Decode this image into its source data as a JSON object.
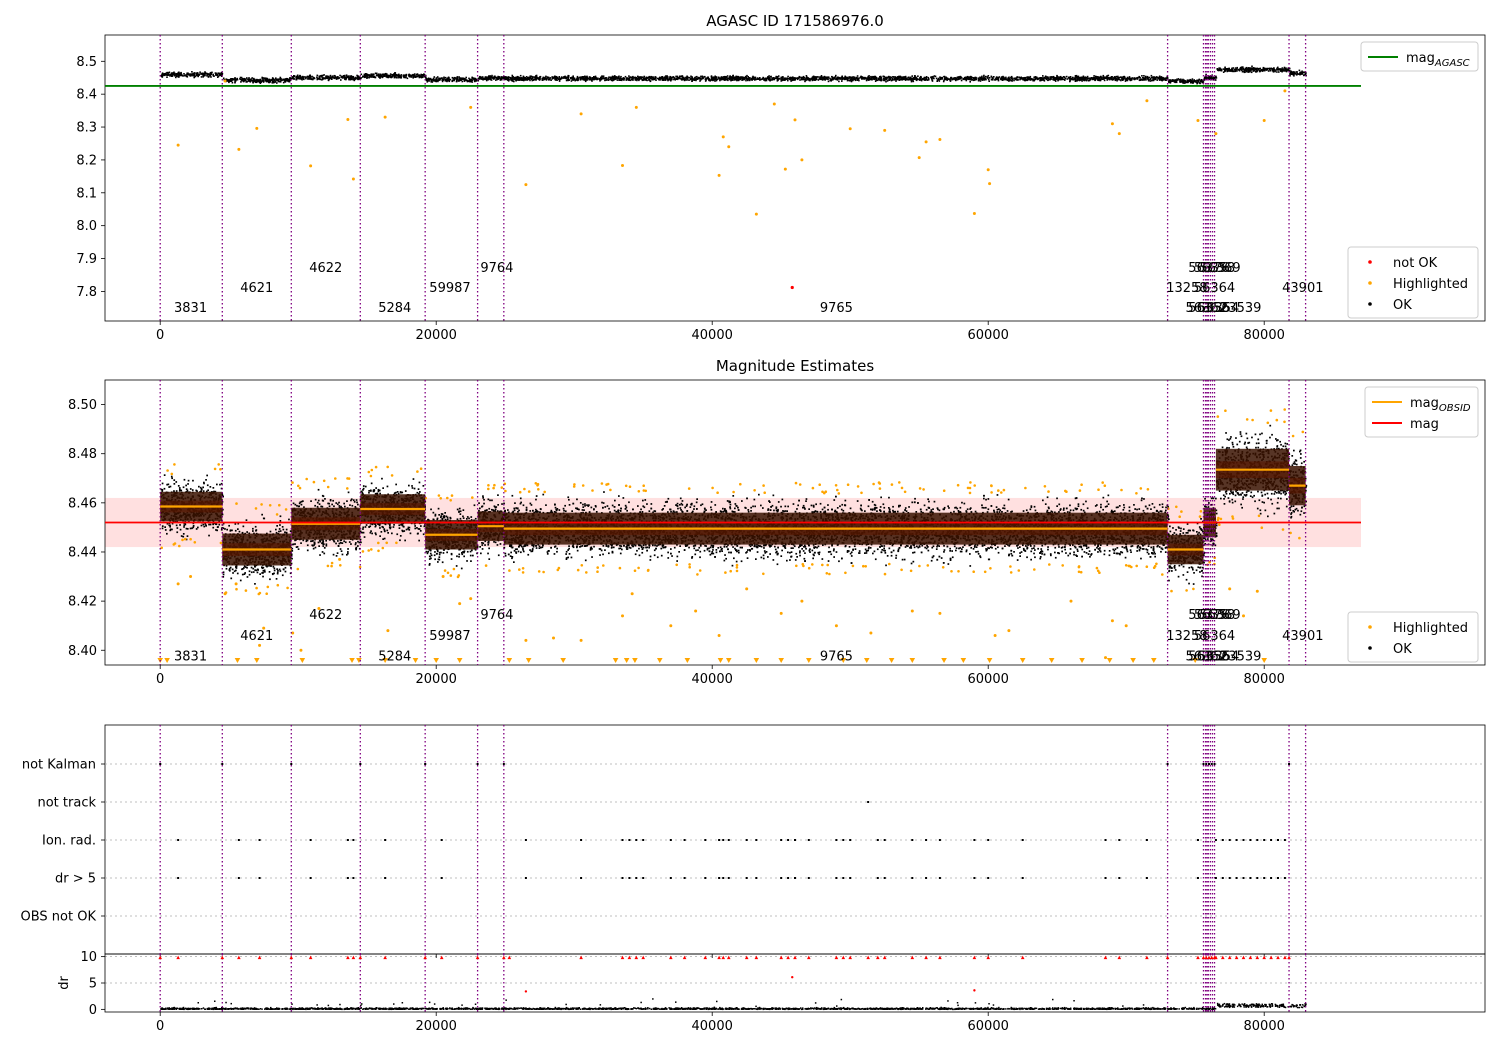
{
  "chart_data": [
    {
      "type": "scatter",
      "title": "AGASC ID 171586976.0",
      "xlim": [
        -4000,
        96000
      ],
      "ylim": [
        7.71,
        8.58
      ],
      "x_ticks": [
        0,
        20000,
        40000,
        60000,
        80000
      ],
      "x_tick_labels": [
        "0",
        "20000",
        "40000",
        "60000",
        "80000"
      ],
      "y_ticks": [
        7.8,
        7.9,
        8.0,
        8.1,
        8.2,
        8.3,
        8.4,
        8.5
      ],
      "y_tick_labels": [
        "7.8",
        "7.9",
        "8.0",
        "8.1",
        "8.2",
        "8.3",
        "8.4",
        "8.5"
      ],
      "mag_agasc": 8.425,
      "legend_upper": {
        "placement": "top-right",
        "entries": [
          {
            "label": "mag",
            "sub": "AGASC",
            "color": "#008000",
            "kind": "line"
          }
        ]
      },
      "legend_lower": {
        "placement": "bottom-right",
        "entries": [
          {
            "label": "not OK",
            "color": "#ff0000",
            "kind": "dot"
          },
          {
            "label": "Highlighted",
            "color": "#ffa500",
            "kind": "dot"
          },
          {
            "label": "OK",
            "color": "#000000",
            "kind": "dot"
          }
        ]
      },
      "not_ok_points": [
        {
          "x": 45800,
          "y": 7.812
        }
      ],
      "highlighted_points": [
        [
          1300,
          8.245
        ],
        [
          4700,
          8.44
        ],
        [
          5700,
          8.232
        ],
        [
          7000,
          8.296
        ],
        [
          10900,
          8.182
        ],
        [
          13600,
          8.323
        ],
        [
          14000,
          8.142
        ],
        [
          16300,
          8.33
        ],
        [
          22500,
          8.36
        ],
        [
          26500,
          8.125
        ],
        [
          30500,
          8.34
        ],
        [
          33500,
          8.183
        ],
        [
          34500,
          8.36
        ],
        [
          40500,
          8.153
        ],
        [
          40800,
          8.27
        ],
        [
          41200,
          8.24
        ],
        [
          43200,
          8.035
        ],
        [
          44500,
          8.37
        ],
        [
          45300,
          8.172
        ],
        [
          46000,
          8.322
        ],
        [
          46500,
          8.2
        ],
        [
          50000,
          8.295
        ],
        [
          52500,
          8.29
        ],
        [
          55000,
          8.207
        ],
        [
          55500,
          8.255
        ],
        [
          56500,
          8.262
        ],
        [
          59000,
          8.037
        ],
        [
          60000,
          8.17
        ],
        [
          60100,
          8.128
        ],
        [
          69000,
          8.31
        ],
        [
          69500,
          8.28
        ],
        [
          71500,
          8.38
        ],
        [
          75200,
          8.32
        ],
        [
          76500,
          8.28
        ],
        [
          80000,
          8.32
        ],
        [
          81500,
          8.41
        ]
      ],
      "obsids": [
        {
          "label": "3831",
          "x": 0,
          "label_x": 1000,
          "y": 7.751
        },
        {
          "label": "4621",
          "x": 4500,
          "label_x": 5800,
          "y": 7.812
        },
        {
          "label": "4622",
          "x": 9500,
          "label_x": 10800,
          "y": 7.872
        },
        {
          "label": "5284",
          "x": 14500,
          "label_x": 15800,
          "y": 7.751
        },
        {
          "label": "59987",
          "x": 19200,
          "label_x": 19500,
          "y": 7.812
        },
        {
          "label": "9764",
          "x": 23000,
          "label_x": 23200,
          "y": 7.872
        },
        {
          "label": "9765",
          "x": 24900,
          "label_x": 47800,
          "y": 7.751
        },
        {
          "label": "13258",
          "x": 73000,
          "label_x": 72900,
          "y": 7.812
        },
        {
          "label": "56376",
          "x": 75600,
          "label_x": 74500,
          "y": 7.872
        },
        {
          "label": "56356",
          "x": 75750,
          "label_x": 74500,
          "y": 7.751
        },
        {
          "label": "56358",
          "x": 75850,
          "label_x": 74900,
          "y": 7.872
        },
        {
          "label": "56369",
          "x": 75950,
          "label_x": 75300,
          "y": 7.872
        },
        {
          "label": "56364",
          "x": 76100,
          "label_x": 74900,
          "y": 7.812
        },
        {
          "label": "56362",
          "x": 76250,
          "label_x": 74300,
          "y": 7.751
        },
        {
          "label": "56354",
          "x": 76400,
          "label_x": 75200,
          "y": 7.751
        },
        {
          "label": "23539",
          "x": 81800,
          "label_x": 76800,
          "y": 7.751
        },
        {
          "label": "43901",
          "x": 83000,
          "label_x": 81300,
          "y": 7.812
        }
      ],
      "segments": [
        {
          "x0": 0,
          "x1": 4500,
          "mag": 8.462
        },
        {
          "x0": 4500,
          "x1": 9500,
          "mag": 8.445
        },
        {
          "x0": 9500,
          "x1": 14500,
          "mag": 8.452
        },
        {
          "x0": 14500,
          "x1": 19200,
          "mag": 8.458
        },
        {
          "x0": 19200,
          "x1": 23000,
          "mag": 8.447
        },
        {
          "x0": 23000,
          "x1": 24900,
          "mag": 8.451
        },
        {
          "x0": 24900,
          "x1": 73000,
          "mag": 8.45
        },
        {
          "x0": 73000,
          "x1": 75600,
          "mag": 8.442
        },
        {
          "x0": 75600,
          "x1": 76500,
          "mag": 8.452
        },
        {
          "x0": 76500,
          "x1": 81800,
          "mag": 8.477
        },
        {
          "x0": 81800,
          "x1": 83000,
          "mag": 8.466
        }
      ]
    },
    {
      "type": "scatter",
      "title": "Magnitude Estimates",
      "xlim": [
        -4000,
        96000
      ],
      "ylim": [
        8.394,
        8.51
      ],
      "x_ticks": [
        0,
        20000,
        40000,
        60000,
        80000
      ],
      "x_tick_labels": [
        "0",
        "20000",
        "40000",
        "60000",
        "80000"
      ],
      "y_ticks": [
        8.4,
        8.42,
        8.44,
        8.46,
        8.48,
        8.5
      ],
      "y_tick_labels": [
        "8.40",
        "8.42",
        "8.44",
        "8.46",
        "8.48",
        "8.50"
      ],
      "mag": 8.452,
      "mag_band": [
        8.442,
        8.462
      ],
      "legend_upper": {
        "placement": "top-right",
        "entries": [
          {
            "label": "mag",
            "sub": "OBSID",
            "color": "#ffa500",
            "kind": "line"
          },
          {
            "label": "mag",
            "color": "#ff0000",
            "kind": "line"
          }
        ]
      },
      "legend_lower": {
        "placement": "bottom-right",
        "entries": [
          {
            "label": "Highlighted",
            "color": "#ffa500",
            "kind": "dot"
          },
          {
            "label": "OK",
            "color": "#000000",
            "kind": "dot"
          }
        ]
      },
      "segments": [
        {
          "x0": 0,
          "x1": 4500,
          "mag": 8.4585,
          "std": 0.006
        },
        {
          "x0": 4500,
          "x1": 9500,
          "mag": 8.441,
          "std": 0.0065
        },
        {
          "x0": 9500,
          "x1": 14500,
          "mag": 8.4515,
          "std": 0.0065
        },
        {
          "x0": 14500,
          "x1": 19200,
          "mag": 8.4575,
          "std": 0.006
        },
        {
          "x0": 19200,
          "x1": 23000,
          "mag": 8.447,
          "std": 0.006
        },
        {
          "x0": 23000,
          "x1": 24900,
          "mag": 8.4505,
          "std": 0.006
        },
        {
          "x0": 24900,
          "x1": 73000,
          "mag": 8.4495,
          "std": 0.0065
        },
        {
          "x0": 73000,
          "x1": 75600,
          "mag": 8.441,
          "std": 0.006
        },
        {
          "x0": 75600,
          "x1": 76500,
          "mag": 8.452,
          "std": 0.006
        },
        {
          "x0": 76500,
          "x1": 81800,
          "mag": 8.4735,
          "std": 0.0085
        },
        {
          "x0": 81800,
          "x1": 83000,
          "mag": 8.467,
          "std": 0.008
        }
      ],
      "highlighted_points": [
        [
          1300,
          8.427
        ],
        [
          2200,
          8.43
        ],
        [
          4700,
          8.423
        ],
        [
          5500,
          8.427
        ],
        [
          7200,
          8.402
        ],
        [
          7500,
          8.409
        ],
        [
          9600,
          8.407
        ],
        [
          10200,
          8.4
        ],
        [
          11500,
          8.417
        ],
        [
          13000,
          8.437
        ],
        [
          16500,
          8.408
        ],
        [
          20500,
          8.43
        ],
        [
          21700,
          8.419
        ],
        [
          22500,
          8.421
        ],
        [
          26500,
          8.404
        ],
        [
          28500,
          8.405
        ],
        [
          30500,
          8.404
        ],
        [
          33500,
          8.414
        ],
        [
          34200,
          8.423
        ],
        [
          37000,
          8.41
        ],
        [
          38800,
          8.416
        ],
        [
          40500,
          8.406
        ],
        [
          42500,
          8.425
        ],
        [
          45000,
          8.415
        ],
        [
          46500,
          8.42
        ],
        [
          49000,
          8.41
        ],
        [
          51500,
          8.407
        ],
        [
          54500,
          8.416
        ],
        [
          56500,
          8.415
        ],
        [
          60500,
          8.406
        ],
        [
          61500,
          8.408
        ],
        [
          66000,
          8.42
        ],
        [
          68500,
          8.397
        ],
        [
          69000,
          8.412
        ],
        [
          70000,
          8.41
        ],
        [
          77500,
          8.425
        ],
        [
          78500,
          8.414
        ],
        [
          79500,
          8.424
        ]
      ],
      "below_axis_points": [
        0,
        500,
        5600,
        7000,
        10300,
        13900,
        14400,
        16300,
        18500,
        20000,
        21700,
        25300,
        26700,
        29200,
        33000,
        33800,
        34400,
        36200,
        38200,
        40600,
        41200,
        43200,
        45000,
        47000,
        49500,
        51200,
        53000,
        54500,
        56800,
        58200,
        60100,
        62500,
        64600,
        66800,
        68800,
        70500,
        72000,
        75000,
        80000
      ],
      "obsids": [
        {
          "label": "3831",
          "x": 0,
          "label_x": 1000,
          "y": 8.3977
        },
        {
          "label": "4621",
          "x": 4500,
          "label_x": 5800,
          "y": 8.4061
        },
        {
          "label": "4622",
          "x": 9500,
          "label_x": 10800,
          "y": 8.4145
        },
        {
          "label": "5284",
          "x": 14500,
          "label_x": 15800,
          "y": 8.3977
        },
        {
          "label": "59987",
          "x": 19200,
          "label_x": 19500,
          "y": 8.4061
        },
        {
          "label": "9764",
          "x": 23000,
          "label_x": 23200,
          "y": 8.4145
        },
        {
          "label": "9765",
          "x": 24900,
          "label_x": 47800,
          "y": 8.3977
        },
        {
          "label": "13258",
          "x": 73000,
          "label_x": 72900,
          "y": 8.4061
        },
        {
          "label": "56376",
          "x": 75600,
          "label_x": 74500,
          "y": 8.4145
        },
        {
          "label": "56356",
          "x": 75750,
          "label_x": 74500,
          "y": 8.3977
        },
        {
          "label": "56358",
          "x": 75850,
          "label_x": 74900,
          "y": 8.4145
        },
        {
          "label": "56369",
          "x": 75950,
          "label_x": 75300,
          "y": 8.4145
        },
        {
          "label": "56364",
          "x": 76100,
          "label_x": 74900,
          "y": 8.4061
        },
        {
          "label": "56362",
          "x": 76250,
          "label_x": 74300,
          "y": 8.3977
        },
        {
          "label": "56354",
          "x": 76400,
          "label_x": 75200,
          "y": 8.3977
        },
        {
          "label": "23539",
          "x": 81800,
          "label_x": 76800,
          "y": 8.3977
        },
        {
          "label": "43901",
          "x": 83000,
          "label_x": 81300,
          "y": 8.4061
        }
      ]
    },
    {
      "type": "scatter",
      "title": "",
      "xlim": [
        -4000,
        96000
      ],
      "categories": [
        "not Kalman",
        "not track",
        "Ion. rad.",
        "dr > 5",
        "OBS not OK"
      ],
      "flags": {
        "not Kalman": [
          0,
          4500,
          9500,
          14500,
          19200,
          23000,
          24900,
          73000,
          75600,
          75800,
          76000,
          76200,
          76400,
          81800
        ],
        "not track": [
          51300
        ],
        "Ion. rad.": [
          1300,
          5700,
          7200,
          10900,
          13600,
          14000,
          16300,
          20400,
          26500,
          30500,
          33500,
          34000,
          34500,
          35000,
          37000,
          38000,
          39500,
          40500,
          40800,
          41200,
          42500,
          43200,
          45000,
          45500,
          46000,
          47000,
          49000,
          49500,
          50000,
          52000,
          52500,
          54500,
          55500,
          56500,
          59000,
          60000,
          62500,
          68500,
          69500,
          71500,
          75200,
          76500,
          77000,
          77500,
          78000,
          78500,
          79000,
          79500,
          80000,
          80500,
          81000,
          81500
        ],
        "dr > 5": [
          1300,
          5700,
          7200,
          10900,
          13600,
          14000,
          16300,
          20400,
          26500,
          30500,
          33500,
          34000,
          34500,
          35000,
          37000,
          38000,
          39500,
          40500,
          40800,
          41200,
          42500,
          43200,
          45000,
          45500,
          46000,
          47000,
          49000,
          49500,
          50000,
          52000,
          52500,
          54500,
          55500,
          56500,
          59000,
          60000,
          62500,
          68500,
          69500,
          71500,
          75200,
          76500,
          77000,
          77500,
          78000,
          78500,
          79000,
          79500,
          80000,
          80500,
          81000,
          81500
        ],
        "OBS not OK": []
      }
    },
    {
      "type": "scatter",
      "title": "",
      "ylabel": "dr",
      "xlim": [
        -4000,
        96000
      ],
      "ylim": [
        -0.5,
        10.5
      ],
      "x_ticks": [
        0,
        20000,
        40000,
        60000,
        80000
      ],
      "x_tick_labels": [
        "0",
        "20000",
        "40000",
        "60000",
        "80000"
      ],
      "y_ticks": [
        0,
        5,
        10
      ],
      "y_tick_labels": [
        "0",
        "5",
        "10"
      ],
      "capped_points": [
        0,
        1300,
        4500,
        5700,
        7200,
        9500,
        10900,
        13600,
        14000,
        14500,
        16300,
        19200,
        20400,
        23000,
        24900,
        25300,
        30500,
        33500,
        34000,
        34500,
        35000,
        37000,
        38000,
        39500,
        40500,
        40800,
        41200,
        42500,
        43200,
        45000,
        45500,
        46000,
        47000,
        49000,
        49500,
        50000,
        51300,
        52000,
        52500,
        54500,
        55500,
        56500,
        59000,
        60000,
        62500,
        68500,
        69500,
        71500,
        73000,
        75200,
        75600,
        75800,
        76000,
        76200,
        76400,
        76500,
        77000,
        77500,
        78000,
        78500,
        79000,
        79500,
        80000,
        80500,
        81000,
        81500,
        81800
      ],
      "mid_points": [
        [
          26500,
          3.4
        ],
        [
          45800,
          6.1
        ],
        [
          59000,
          3.6
        ]
      ]
    }
  ]
}
